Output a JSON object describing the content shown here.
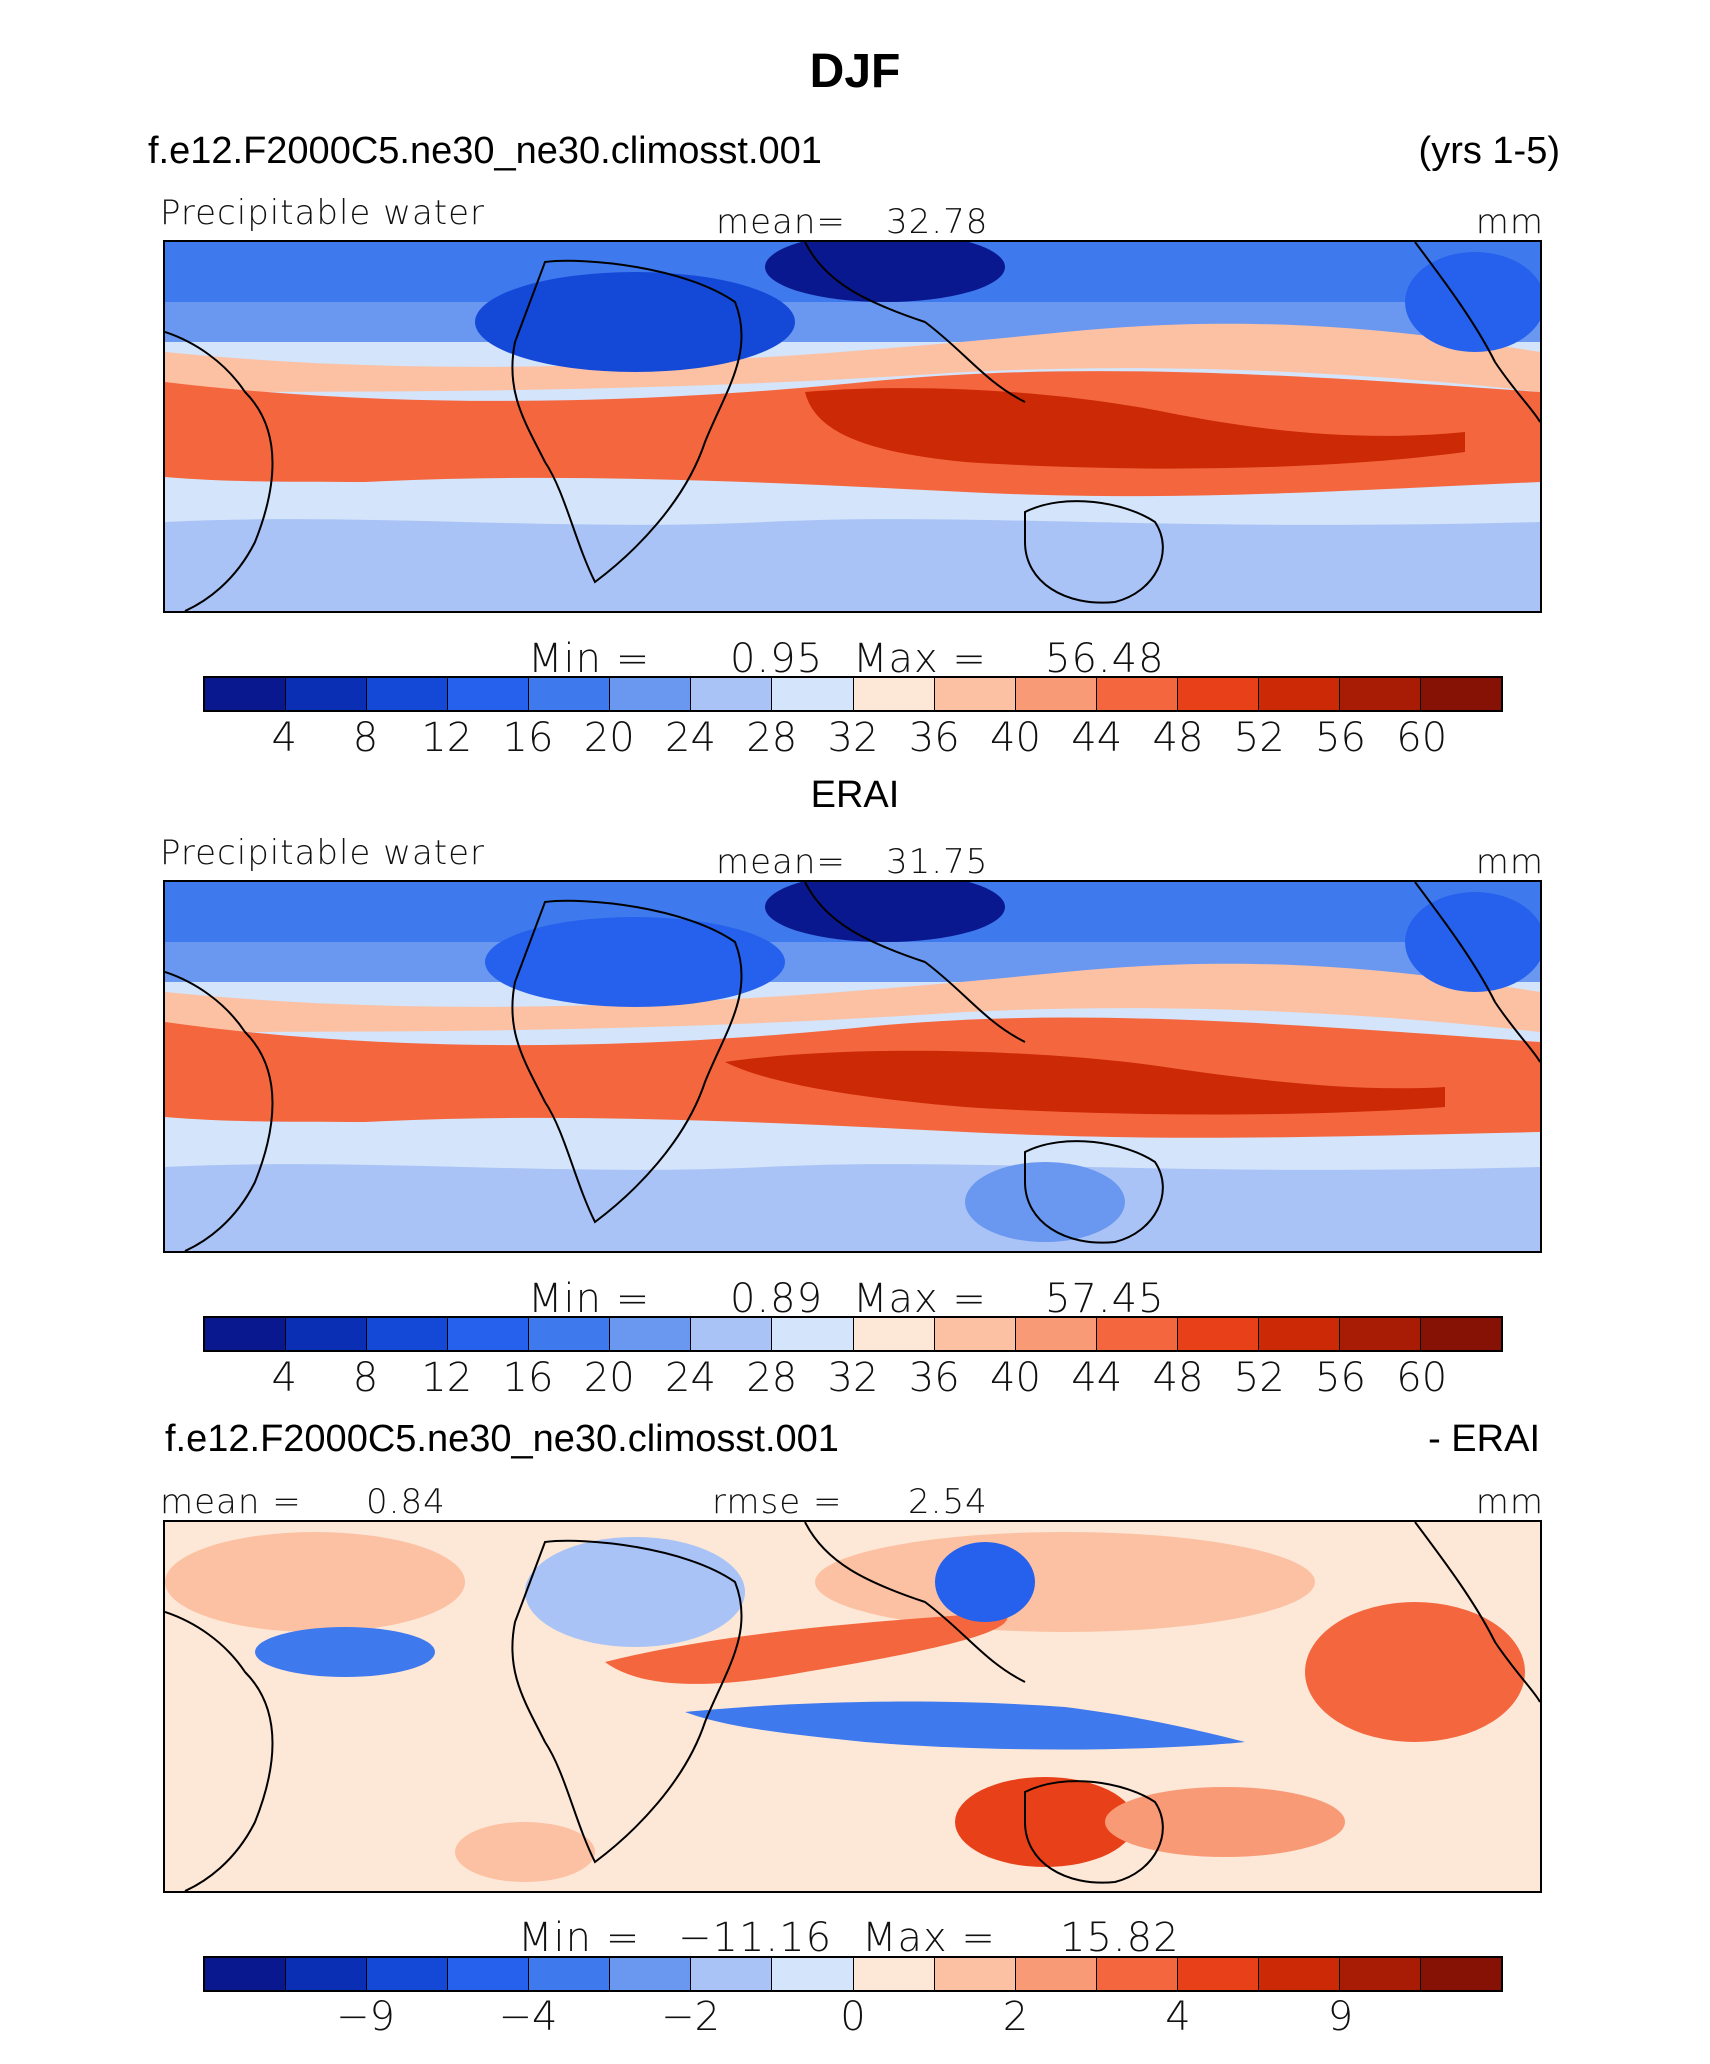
{
  "figure": {
    "title": "DJF",
    "case_name": "f.e12.F2000C5.ne30_ne30.climosst.001",
    "years": "(yrs 1-5)",
    "reference_label": "ERAI",
    "diff_case_name": "f.e12.F2000C5.ne30_ne30.climosst.001",
    "diff_suffix": "- ERAI"
  },
  "colors": {
    "palette": [
      "#0a1890",
      "#0a2fb4",
      "#1449d8",
      "#2561ec",
      "#3f79ee",
      "#6a98f0",
      "#a9c3f6",
      "#d4e4fa",
      "#fde7d6",
      "#fcc1a3",
      "#f99a76",
      "#f4673e",
      "#e84018",
      "#cc2a06",
      "#a81b05",
      "#861105"
    ]
  },
  "chart_data": [
    {
      "type": "heatmap",
      "panel": "model",
      "variable_label": "Precipitable water",
      "units": "mm",
      "mean_label": "mean=",
      "mean": "32.78",
      "min_label": "Min =",
      "min": "0.95",
      "max_label": "Max =",
      "max": "56.48",
      "colorbar_levels": [
        "4",
        "8",
        "12",
        "16",
        "20",
        "24",
        "28",
        "32",
        "36",
        "40",
        "44",
        "48",
        "52",
        "56",
        "60"
      ]
    },
    {
      "type": "heatmap",
      "panel": "reference",
      "variable_label": "Precipitable water",
      "units": "mm",
      "mean_label": "mean=",
      "mean": "31.75",
      "min_label": "Min =",
      "min": "0.89",
      "max_label": "Max =",
      "max": "57.45",
      "colorbar_levels": [
        "4",
        "8",
        "12",
        "16",
        "20",
        "24",
        "28",
        "32",
        "36",
        "40",
        "44",
        "48",
        "52",
        "56",
        "60"
      ]
    },
    {
      "type": "heatmap",
      "panel": "difference",
      "units": "mm",
      "mean_label": "mean =",
      "mean": "0.84",
      "rmse_label": "rmse =",
      "rmse": "2.54",
      "min_label": "Min =",
      "min": "−11.16",
      "max_label": "Max =",
      "max": "15.82",
      "colorbar_levels": [
        "−9",
        "−4",
        "−2",
        "0",
        "2",
        "4",
        "9"
      ],
      "colorbar_level_positions": [
        2,
        4,
        6,
        8,
        10,
        12,
        14
      ]
    }
  ]
}
